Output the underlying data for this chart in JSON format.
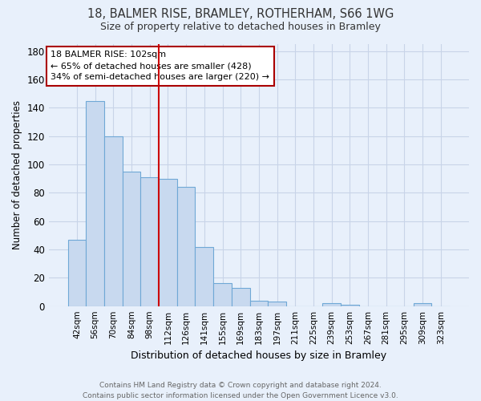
{
  "title1": "18, BALMER RISE, BRAMLEY, ROTHERHAM, S66 1WG",
  "title2": "Size of property relative to detached houses in Bramley",
  "xlabel": "Distribution of detached houses by size in Bramley",
  "ylabel": "Number of detached properties",
  "footnote": "Contains HM Land Registry data © Crown copyright and database right 2024.\nContains public sector information licensed under the Open Government Licence v3.0.",
  "categories": [
    "42sqm",
    "56sqm",
    "70sqm",
    "84sqm",
    "98sqm",
    "112sqm",
    "126sqm",
    "141sqm",
    "155sqm",
    "169sqm",
    "183sqm",
    "197sqm",
    "211sqm",
    "225sqm",
    "239sqm",
    "253sqm",
    "267sqm",
    "281sqm",
    "295sqm",
    "309sqm",
    "323sqm"
  ],
  "values": [
    47,
    145,
    120,
    95,
    91,
    90,
    84,
    42,
    16,
    13,
    4,
    3,
    0,
    0,
    2,
    1,
    0,
    0,
    0,
    2,
    0
  ],
  "bar_color": "#c8d9ef",
  "bar_edge_color": "#6fa8d6",
  "background_color": "#e8f0fb",
  "grid_color": "#c8d4e8",
  "red_line_index": 5,
  "annotation_text": "18 BALMER RISE: 102sqm\n← 65% of detached houses are smaller (428)\n34% of semi-detached houses are larger (220) →",
  "annotation_box_color": "#ffffff",
  "annotation_box_edge": "#aa0000",
  "ylim": [
    0,
    185
  ],
  "yticks": [
    0,
    20,
    40,
    60,
    80,
    100,
    120,
    140,
    160,
    180
  ]
}
